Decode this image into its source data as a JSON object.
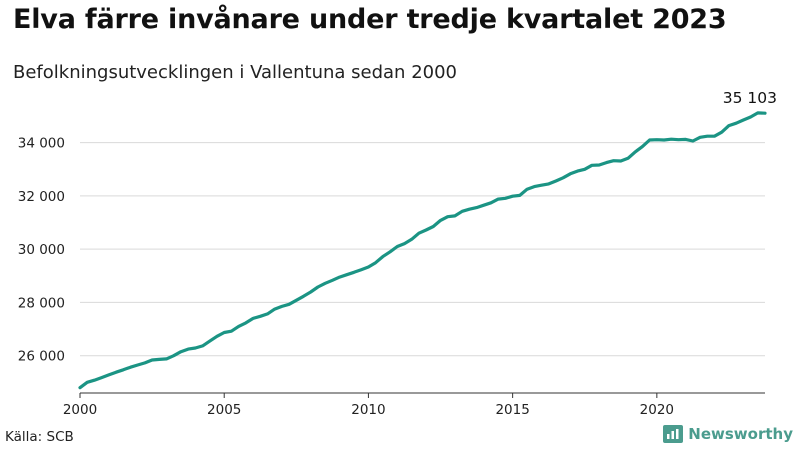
{
  "title": "Elva färre invånare under tredje kvartalet 2023",
  "subtitle": "Befolkningsutvecklingen i Vallentuna sedan 2000",
  "source": "Källa: SCB",
  "brand": {
    "name": "Newsworthy",
    "color": "#4b9c8e",
    "icon": "bar-chart-icon"
  },
  "colors": {
    "line": "#1b9484",
    "grid": "#d9d9d9",
    "baseline": "#333333",
    "text": "#222222"
  },
  "chart_data": {
    "type": "line",
    "title": "Elva färre invånare under tredje kvartalet 2023",
    "subtitle": "Befolkningsutvecklingen i Vallentuna sedan 2000",
    "xlabel": "",
    "ylabel": "",
    "xlim": [
      2000,
      2023.75
    ],
    "ylim": [
      24600,
      35600
    ],
    "grid": true,
    "x_ticks": [
      2000,
      2005,
      2010,
      2015,
      2020
    ],
    "x_tick_labels": [
      "2000",
      "2005",
      "2010",
      "2015",
      "2020"
    ],
    "y_ticks": [
      26000,
      28000,
      30000,
      32000,
      34000
    ],
    "y_tick_labels": [
      "26 000",
      "28 000",
      "30 000",
      "32 000",
      "34 000"
    ],
    "end_label": "35 103",
    "series": [
      {
        "x": [
          2000.0,
          2000.25,
          2000.5,
          2000.75,
          2001.0,
          2001.25,
          2001.5,
          2001.75,
          2002.0,
          2002.25,
          2002.5,
          2002.75,
          2003.0,
          2003.25,
          2003.5,
          2003.75,
          2004.0,
          2004.25,
          2004.5,
          2004.75,
          2005.0,
          2005.25,
          2005.5,
          2005.75,
          2006.0,
          2006.25,
          2006.5,
          2006.75,
          2007.0,
          2007.25,
          2007.5,
          2007.75,
          2008.0,
          2008.25,
          2008.5,
          2008.75,
          2009.0,
          2009.25,
          2009.5,
          2009.75,
          2010.0,
          2010.25,
          2010.5,
          2010.75,
          2011.0,
          2011.25,
          2011.5,
          2011.75,
          2012.0,
          2012.25,
          2012.5,
          2012.75,
          2013.0,
          2013.25,
          2013.5,
          2013.75,
          2014.0,
          2014.25,
          2014.5,
          2014.75,
          2015.0,
          2015.25,
          2015.5,
          2015.75,
          2016.0,
          2016.25,
          2016.5,
          2016.75,
          2017.0,
          2017.25,
          2017.5,
          2017.75,
          2018.0,
          2018.25,
          2018.5,
          2018.75,
          2019.0,
          2019.25,
          2019.5,
          2019.75,
          2020.0,
          2020.25,
          2020.5,
          2020.75,
          2021.0,
          2021.25,
          2021.5,
          2021.75,
          2022.0,
          2022.25,
          2022.5,
          2022.75,
          2023.0,
          2023.25,
          2023.5,
          2023.75
        ],
        "values": [
          24800,
          25000,
          25080,
          25180,
          25280,
          25380,
          25470,
          25570,
          25650,
          25730,
          25840,
          25860,
          25880,
          26000,
          26150,
          26250,
          26290,
          26370,
          26550,
          26730,
          26870,
          26920,
          27100,
          27230,
          27400,
          27480,
          27570,
          27750,
          27850,
          27930,
          28080,
          28230,
          28390,
          28580,
          28720,
          28830,
          28950,
          29040,
          29130,
          29230,
          29330,
          29490,
          29720,
          29900,
          30100,
          30210,
          30370,
          30600,
          30720,
          30850,
          31080,
          31220,
          31250,
          31420,
          31500,
          31560,
          31650,
          31740,
          31880,
          31910,
          31990,
          32020,
          32250,
          32350,
          32400,
          32450,
          32560,
          32680,
          32830,
          32930,
          33000,
          33150,
          33160,
          33250,
          33320,
          33310,
          33410,
          33650,
          33850,
          34100,
          34110,
          34100,
          34130,
          34110,
          34120,
          34060,
          34200,
          34240,
          34240,
          34390,
          34640,
          34730,
          34850,
          34960,
          35114,
          35103
        ]
      }
    ]
  }
}
